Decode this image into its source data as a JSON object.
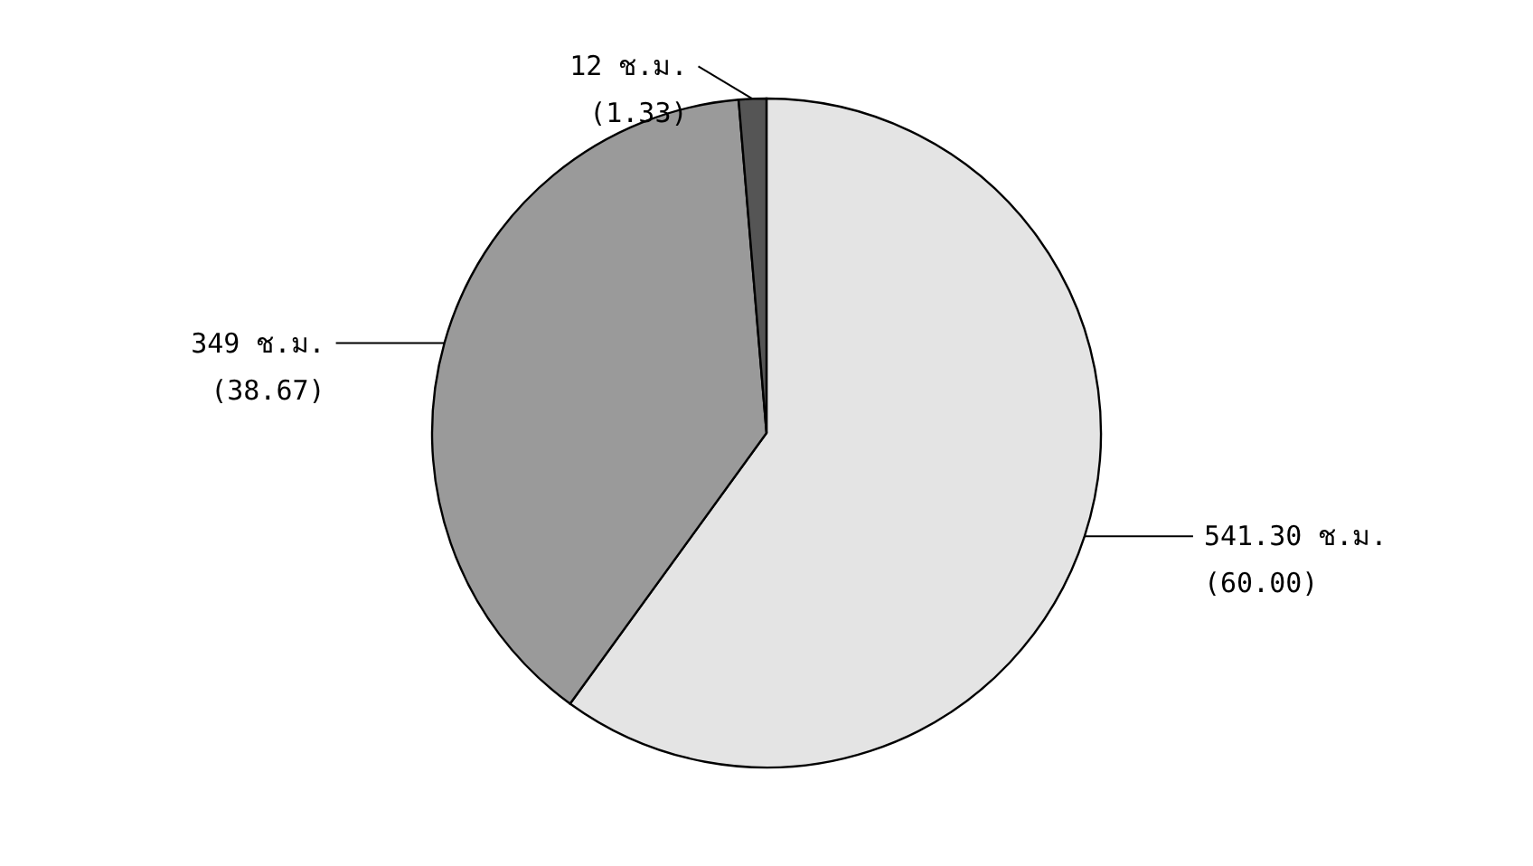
{
  "chart_data": {
    "type": "pie",
    "categories": [
      null,
      null,
      null
    ],
    "values": [
      12,
      349,
      541.3
    ],
    "colors": [
      "#555555",
      "#9a9a9a",
      "#e4e4e4"
    ],
    "value_labels": [
      "12 ช.ม.\n(1.33)",
      "349 ช.ม.\n(38.67)",
      "541.30 ช.ม.\n(60.00)"
    ]
  }
}
